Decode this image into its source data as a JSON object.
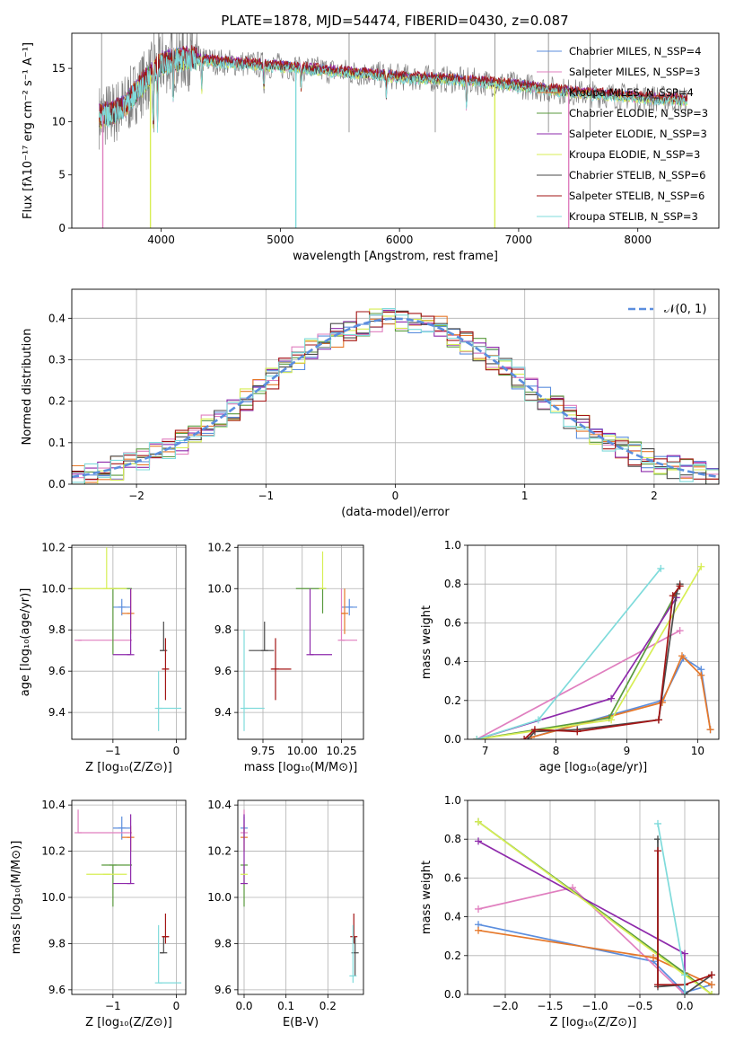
{
  "colors": {
    "blue": "#5b8ede",
    "pink": "#e07fbf",
    "orange": "#e6782a",
    "green": "#5a9a3e",
    "purple": "#8e2aab",
    "yellow": "#d7ee55",
    "gray": "#4a4a4a",
    "red": "#a31515",
    "cyan": "#7fdbdb",
    "spectrum_gray": "#808080",
    "grid": "#b0b0b0"
  },
  "chart_data": [
    {
      "id": "spectrum",
      "type": "line",
      "title": "PLATE=1878, MJD=54474, FIBERID=0430, z=0.087",
      "xlabel": "wavelength [Angstrom, rest frame]",
      "ylabel": "Flux [fλ10⁻¹⁷ erg cm⁻² s⁻¹ A⁻¹]",
      "xlim": [
        3250,
        8680
      ],
      "ylim": [
        0,
        18.3
      ],
      "xticks": [
        "4000",
        "5000",
        "6000",
        "7000",
        "8000"
      ],
      "yticks": [
        "0",
        "5",
        "10",
        "15"
      ],
      "grid": false,
      "legend": "top-right",
      "legend_entries": [
        "Chabrier MILES, N_SSP=4",
        "Salpeter MILES, N_SSP=3",
        "Kroupa MILES, N_SSP=4",
        "Chabrier ELODIE, N_SSP=3",
        "Salpeter ELODIE, N_SSP=3",
        "Kroupa ELODIE, N_SSP=3",
        "Chabrier STELIB, N_SSP=6",
        "Salpeter STELIB, N_SSP=6",
        "Kroupa STELIB, N_SSP=3"
      ],
      "observed_continuum": [
        [
          3480,
          10.5
        ],
        [
          3600,
          10.8
        ],
        [
          3700,
          11.5
        ],
        [
          3800,
          13.0
        ],
        [
          3900,
          14.2
        ],
        [
          4000,
          15.5
        ],
        [
          4200,
          16.0
        ],
        [
          4500,
          15.6
        ],
        [
          5000,
          15.2
        ],
        [
          5500,
          14.7
        ],
        [
          6000,
          14.2
        ],
        [
          6500,
          13.9
        ],
        [
          7000,
          13.4
        ],
        [
          7500,
          12.7
        ],
        [
          8000,
          12.3
        ],
        [
          8420,
          12.0
        ]
      ],
      "model_drops": [
        {
          "series": "Salpeter MILES",
          "x": 3510
        },
        {
          "series": "Kroupa ELODIE",
          "x": 3910
        },
        {
          "series": "Kroupa STELIB",
          "x": 5130
        },
        {
          "series": "Kroupa ELODIE",
          "x": 6800
        },
        {
          "series": "Salpeter MILES",
          "x": 7420
        }
      ]
    },
    {
      "id": "residuals",
      "type": "histogram",
      "xlabel": "(data-model)/error",
      "ylabel": "Normed distribution",
      "xlim": [
        -2.5,
        2.5
      ],
      "ylim": [
        0,
        0.47
      ],
      "xticks": [
        "−2",
        "−1",
        "0",
        "1",
        "2"
      ],
      "yticks": [
        "0.0",
        "0.1",
        "0.2",
        "0.3",
        "0.4"
      ],
      "grid": true,
      "legend": "top-right",
      "legend_entries": [
        "𝒩(0, 1)"
      ],
      "bin_width": 0.1
    },
    {
      "id": "age_vs_Z",
      "type": "errorbar",
      "xlabel": "Z [log₁₀(Z/Z⊙)]",
      "ylabel": "age  [log₁₀(age/yr)]",
      "xlim": [
        -1.65,
        0.15
      ],
      "ylim": [
        9.27,
        10.21
      ],
      "xticks": [
        "−1",
        "0"
      ],
      "yticks": [
        "9.4",
        "9.6",
        "9.8",
        "10.0",
        "10.2"
      ],
      "grid": true,
      "points": [
        {
          "series": "Chabrier MILES",
          "x": -0.86,
          "xerr": [
            0.14,
            0.14
          ],
          "y": 9.91,
          "yerr": [
            0.04,
            0.04
          ]
        },
        {
          "series": "Salpeter MILES",
          "x": -1.55,
          "xerr": [
            0.0,
            0.85
          ],
          "y": 9.75,
          "yerr": [
            0.0,
            0.0
          ]
        },
        {
          "series": "Kroupa MILES",
          "x": -0.72,
          "xerr": [
            0.14,
            0.0
          ],
          "y": 9.88,
          "yerr": [
            0.1,
            0.12
          ]
        },
        {
          "series": "Chabrier ELODIE",
          "x": -1.0,
          "xerr": [
            0.0,
            0.3
          ],
          "y": 10.0,
          "yerr": [
            0.32,
            0.0
          ]
        },
        {
          "series": "Salpeter ELODIE",
          "x": -0.72,
          "xerr": [
            0.28,
            0.0
          ],
          "y": 9.68,
          "yerr": [
            0.0,
            0.32
          ]
        },
        {
          "series": "Kroupa ELODIE",
          "x": -1.1,
          "xerr": [
            0.55,
            0.32
          ],
          "y": 10.0,
          "yerr": [
            0.0,
            0.2
          ]
        },
        {
          "series": "Chabrier STELIB",
          "x": -0.2,
          "xerr": [
            0.06,
            0.0
          ],
          "y": 9.7,
          "yerr": [
            0.0,
            0.14
          ]
        },
        {
          "series": "Salpeter STELIB",
          "x": -0.17,
          "xerr": [
            0.05,
            0.05
          ],
          "y": 9.61,
          "yerr": [
            0.15,
            0.15
          ]
        },
        {
          "series": "Kroupa STELIB",
          "x": -0.28,
          "xerr": [
            0.0,
            0.36
          ],
          "y": 9.42,
          "yerr": [
            0.11,
            0.18
          ]
        }
      ]
    },
    {
      "id": "age_vs_mass",
      "type": "errorbar",
      "xlabel": "mass [log₁₀(M/M⊙)]",
      "ylabel": "",
      "xlim": [
        9.59,
        10.39
      ],
      "ylim": [
        9.27,
        10.21
      ],
      "xticks": [
        "9.75",
        "10.00",
        "10.25"
      ],
      "yticks": [
        "9.4",
        "9.6",
        "9.8",
        "10.0",
        "10.2"
      ],
      "grid": true,
      "points": [
        {
          "series": "Chabrier MILES",
          "x": 10.3,
          "xerr": [
            0.05,
            0.05
          ],
          "y": 9.91,
          "yerr": [
            0.04,
            0.04
          ]
        },
        {
          "series": "Salpeter MILES",
          "x": 10.25,
          "xerr": [
            0.0,
            0.1
          ],
          "y": 9.75,
          "yerr": [
            0.0,
            0.25
          ]
        },
        {
          "series": "Kroupa MILES",
          "x": 10.27,
          "xerr": [
            0.02,
            0.0
          ],
          "y": 9.88,
          "yerr": [
            0.1,
            0.12
          ]
        },
        {
          "series": "Chabrier ELODIE",
          "x": 10.13,
          "xerr": [
            0.17,
            0.0
          ],
          "y": 10.0,
          "yerr": [
            0.12,
            0.0
          ]
        },
        {
          "series": "Salpeter ELODIE",
          "x": 10.05,
          "xerr": [
            0.0,
            0.14
          ],
          "y": 9.68,
          "yerr": [
            0.0,
            0.32
          ]
        },
        {
          "series": "Kroupa ELODIE",
          "x": 10.13,
          "xerr": [
            0.0,
            0.0
          ],
          "y": 10.0,
          "yerr": [
            0.0,
            0.18
          ]
        },
        {
          "series": "Chabrier STELIB",
          "x": 9.76,
          "xerr": [
            0.1,
            0.06
          ],
          "y": 9.7,
          "yerr": [
            0.0,
            0.14
          ]
        },
        {
          "series": "Salpeter STELIB",
          "x": 9.83,
          "xerr": [
            0.03,
            0.1
          ],
          "y": 9.61,
          "yerr": [
            0.15,
            0.15
          ]
        },
        {
          "series": "Kroupa STELIB",
          "x": 9.63,
          "xerr": [
            0.0,
            0.13
          ],
          "y": 9.42,
          "yerr": [
            0.11,
            0.38
          ]
        }
      ]
    },
    {
      "id": "weight_vs_age",
      "type": "line",
      "xlabel": "age  [log₁₀(age/yr)]",
      "ylabel": "mass weight",
      "xlim": [
        6.75,
        10.3
      ],
      "ylim": [
        0,
        1.0
      ],
      "xticks": [
        "7",
        "8",
        "9",
        "10"
      ],
      "yticks": [
        "0.0",
        "0.2",
        "0.4",
        "0.6",
        "0.8",
        "1.0"
      ],
      "grid": true,
      "series": [
        {
          "name": "Chabrier MILES",
          "x": [
            7.65,
            9.5,
            9.8,
            10.05,
            10.18
          ],
          "y": [
            0.01,
            0.2,
            0.42,
            0.36,
            0.05
          ]
        },
        {
          "name": "Salpeter MILES",
          "x": [
            6.88,
            9.75
          ],
          "y": [
            0.0,
            0.56
          ]
        },
        {
          "name": "Kroupa MILES",
          "x": [
            7.65,
            9.5,
            9.78,
            10.05,
            10.18
          ],
          "y": [
            0.01,
            0.19,
            0.43,
            0.33,
            0.05
          ]
        },
        {
          "name": "Chabrier ELODIE",
          "x": [
            6.88,
            8.75,
            9.75
          ],
          "y": [
            0.0,
            0.11,
            0.79
          ]
        },
        {
          "name": "Salpeter ELODIE",
          "x": [
            6.88,
            8.78,
            9.7
          ],
          "y": [
            0.0,
            0.21,
            0.73
          ]
        },
        {
          "name": "Kroupa ELODIE",
          "x": [
            6.88,
            8.78,
            10.05
          ],
          "y": [
            0.0,
            0.1,
            0.89
          ]
        },
        {
          "name": "Chabrier STELIB",
          "x": [
            7.6,
            7.7,
            8.3,
            9.45,
            9.7,
            9.75
          ],
          "y": [
            0.0,
            0.04,
            0.05,
            0.1,
            0.75,
            0.8
          ]
        },
        {
          "name": "Salpeter STELIB",
          "x": [
            7.55,
            7.7,
            8.3,
            9.45,
            9.65,
            9.75
          ],
          "y": [
            0.0,
            0.05,
            0.04,
            0.1,
            0.74,
            0.79
          ]
        },
        {
          "name": "Kroupa STELIB",
          "x": [
            6.88,
            7.75,
            9.48
          ],
          "y": [
            0.0,
            0.1,
            0.88
          ]
        }
      ]
    },
    {
      "id": "mass_vs_Z",
      "type": "errorbar",
      "xlabel": "Z [log₁₀(Z/Z⊙)]",
      "ylabel": "mass [log₁₀(M/M⊙)]",
      "xlim": [
        -1.65,
        0.15
      ],
      "ylim": [
        9.58,
        10.42
      ],
      "xticks": [
        "−1",
        "0"
      ],
      "yticks": [
        "9.6",
        "9.8",
        "10.0",
        "10.2",
        "10.4"
      ],
      "grid": true,
      "points": [
        {
          "series": "Chabrier MILES",
          "x": -0.86,
          "xerr": [
            0.14,
            0.14
          ],
          "y": 10.3,
          "yerr": [
            0.05,
            0.05
          ]
        },
        {
          "series": "Salpeter MILES",
          "x": -1.55,
          "xerr": [
            0.0,
            0.85
          ],
          "y": 10.28,
          "yerr": [
            0.0,
            0.1
          ]
        },
        {
          "series": "Kroupa MILES",
          "x": -0.72,
          "xerr": [
            0.14,
            0.0
          ],
          "y": 10.26,
          "yerr": [
            0.06,
            0.05
          ]
        },
        {
          "series": "Chabrier ELODIE",
          "x": -1.0,
          "xerr": [
            0.18,
            0.3
          ],
          "y": 10.14,
          "yerr": [
            0.18,
            0.0
          ]
        },
        {
          "series": "Salpeter ELODIE",
          "x": -0.72,
          "xerr": [
            0.28,
            0.0
          ],
          "y": 10.06,
          "yerr": [
            0.0,
            0.3
          ]
        },
        {
          "series": "Kroupa ELODIE",
          "x": -1.1,
          "xerr": [
            0.32,
            0.32
          ],
          "y": 10.1,
          "yerr": [
            0.0,
            0.0
          ]
        },
        {
          "series": "Chabrier STELIB",
          "x": -0.2,
          "xerr": [
            0.06,
            0.0
          ],
          "y": 9.76,
          "yerr": [
            0.0,
            0.07
          ]
        },
        {
          "series": "Salpeter STELIB",
          "x": -0.17,
          "xerr": [
            0.05,
            0.05
          ],
          "y": 9.83,
          "yerr": [
            0.03,
            0.1
          ]
        },
        {
          "series": "Kroupa STELIB",
          "x": -0.28,
          "xerr": [
            0.0,
            0.36
          ],
          "y": 9.63,
          "yerr": [
            0.0,
            0.25
          ]
        }
      ]
    },
    {
      "id": "mass_vs_EBV",
      "type": "errorbar",
      "xlabel": "E(B-V)",
      "ylabel": "",
      "xlim": [
        -0.015,
        0.285
      ],
      "ylim": [
        9.58,
        10.42
      ],
      "xticks": [
        "0.0",
        "0.1",
        "0.2"
      ],
      "yticks": [
        "9.6",
        "9.8",
        "10.0",
        "10.2",
        "10.4"
      ],
      "grid": true,
      "points": [
        {
          "series": "Chabrier MILES",
          "x": 0.0,
          "xerr": [
            0,
            0
          ],
          "y": 10.3,
          "yerr": [
            0.05,
            0.05
          ]
        },
        {
          "series": "Salpeter MILES",
          "x": 0.0,
          "xerr": [
            0,
            0
          ],
          "y": 10.28,
          "yerr": [
            0.0,
            0.1
          ]
        },
        {
          "series": "Kroupa MILES",
          "x": 0.0,
          "xerr": [
            0,
            0
          ],
          "y": 10.26,
          "yerr": [
            0.06,
            0.05
          ]
        },
        {
          "series": "Chabrier ELODIE",
          "x": 0.0,
          "xerr": [
            0,
            0
          ],
          "y": 10.14,
          "yerr": [
            0.18,
            0.0
          ]
        },
        {
          "series": "Salpeter ELODIE",
          "x": 0.0,
          "xerr": [
            0,
            0
          ],
          "y": 10.06,
          "yerr": [
            0.0,
            0.3
          ]
        },
        {
          "series": "Kroupa ELODIE",
          "x": 0.0,
          "xerr": [
            0,
            0
          ],
          "y": 10.1,
          "yerr": [
            0.0,
            0.0
          ]
        },
        {
          "series": "Chabrier STELIB",
          "x": 0.265,
          "xerr": [
            0,
            0
          ],
          "y": 9.76,
          "yerr": [
            0.1,
            0.07
          ]
        },
        {
          "series": "Salpeter STELIB",
          "x": 0.262,
          "xerr": [
            0,
            0
          ],
          "y": 9.83,
          "yerr": [
            0.03,
            0.1
          ]
        },
        {
          "series": "Kroupa STELIB",
          "x": 0.26,
          "xerr": [
            0,
            0
          ],
          "y": 9.66,
          "yerr": [
            0.03,
            0.22
          ]
        }
      ]
    },
    {
      "id": "weight_vs_Z",
      "type": "line",
      "xlabel": "Z [log₁₀(Z/Z⊙)]",
      "ylabel": "mass weight",
      "xlim": [
        -2.42,
        0.38
      ],
      "ylim": [
        0,
        1.0
      ],
      "xticks": [
        "−2.0",
        "−1.5",
        "−1.0",
        "−0.5",
        "0.0"
      ],
      "yticks": [
        "0.0",
        "0.2",
        "0.4",
        "0.6",
        "0.8",
        "1.0"
      ],
      "grid": true,
      "series": [
        {
          "name": "Chabrier MILES",
          "x": [
            -2.3,
            -0.35,
            0.0,
            0.3
          ],
          "y": [
            0.36,
            0.17,
            0.01,
            0.05
          ]
        },
        {
          "name": "Salpeter MILES",
          "x": [
            -2.3,
            -1.25,
            0.0
          ],
          "y": [
            0.44,
            0.55,
            0.0
          ]
        },
        {
          "name": "Kroupa MILES",
          "x": [
            -2.3,
            -0.35,
            0.3
          ],
          "y": [
            0.33,
            0.19,
            0.05
          ]
        },
        {
          "name": "Chabrier ELODIE",
          "x": [
            -2.3,
            0.0,
            0.3
          ],
          "y": [
            0.89,
            0.11,
            0.0
          ]
        },
        {
          "name": "Salpeter ELODIE",
          "x": [
            -2.3,
            0.0,
            0.0
          ],
          "y": [
            0.79,
            0.21,
            0.0
          ]
        },
        {
          "name": "Kroupa ELODIE",
          "x": [
            -2.3,
            0.0,
            0.3
          ],
          "y": [
            0.89,
            0.1,
            0.0
          ]
        },
        {
          "name": "Chabrier STELIB",
          "x": [
            -0.3,
            -0.3,
            0.0,
            0.0,
            0.3
          ],
          "y": [
            0.8,
            0.04,
            0.05,
            0.0,
            0.1
          ]
        },
        {
          "name": "Salpeter STELIB",
          "x": [
            -0.3,
            -0.3,
            0.0,
            0.3
          ],
          "y": [
            0.74,
            0.05,
            0.05,
            0.1
          ]
        },
        {
          "name": "Kroupa STELIB",
          "x": [
            -0.3,
            0.0,
            0.0
          ],
          "y": [
            0.88,
            0.1,
            0.0
          ]
        }
      ]
    }
  ]
}
